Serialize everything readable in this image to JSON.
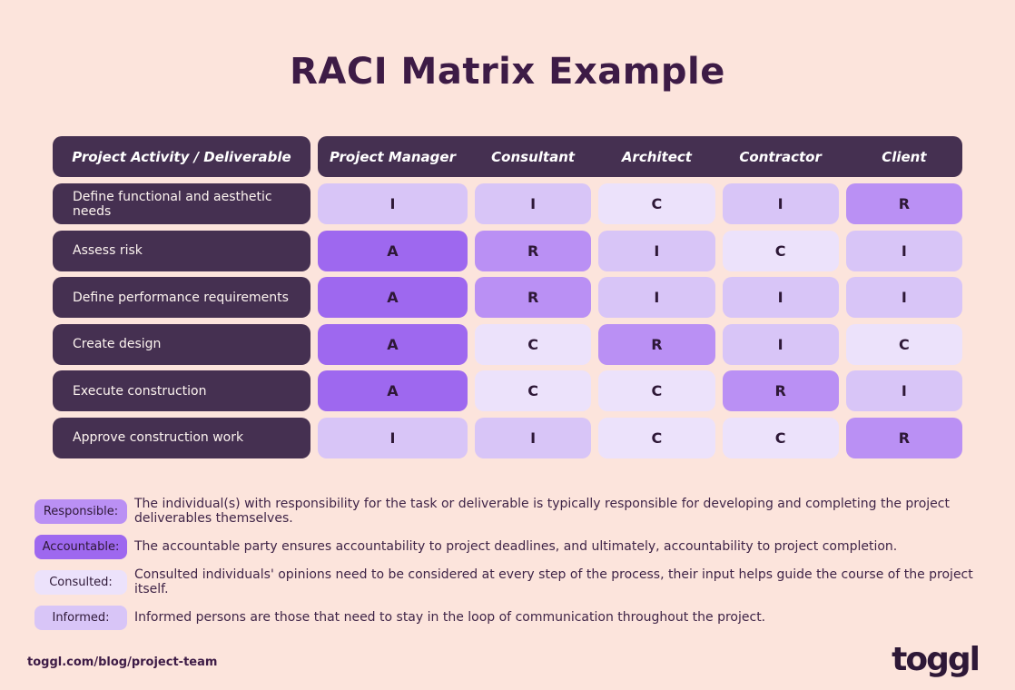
{
  "title": "RACI Matrix Example",
  "chart_data": {
    "type": "table",
    "title": "RACI Matrix Example",
    "columns": [
      "Project Activity / Deliverable",
      "Project Manager",
      "Consultant",
      "Architect",
      "Contractor",
      "Client"
    ],
    "rows": [
      [
        "Define functional and aesthetic needs",
        "I",
        "I",
        "C",
        "I",
        "R"
      ],
      [
        "Assess risk",
        "A",
        "R",
        "I",
        "C",
        "I"
      ],
      [
        "Define performance requirements",
        "A",
        "R",
        "I",
        "I",
        "I"
      ],
      [
        "Create design",
        "A",
        "C",
        "R",
        "I",
        "C"
      ],
      [
        "Execute construction",
        "A",
        "C",
        "C",
        "R",
        "I"
      ],
      [
        "Approve construction work",
        "I",
        "I",
        "C",
        "C",
        "R"
      ]
    ],
    "legend": [
      {
        "label": "Responsible:",
        "key": "R",
        "text": "The individual(s) with responsibility for the task or deliverable is typically responsible for developing and completing the project deliverables themselves."
      },
      {
        "label": "Accountable:",
        "key": "A",
        "text": "The accountable party ensures accountability to project deadlines, and ultimately, accountability to project completion."
      },
      {
        "label": "Consulted:",
        "key": "C",
        "text": "Consulted individuals' opinions need to be considered at every step of the process, their input helps guide the course of the project itself."
      },
      {
        "label": "Informed:",
        "key": "I",
        "text": "Informed persons are those that need to stay in the loop of communication throughout the project."
      }
    ]
  },
  "footer": {
    "url": "toggl.com/blog/project-team",
    "brand": "toggl"
  },
  "colors": {
    "background": "#fce4dc",
    "panel_dark": "#453051",
    "title": "#3d1b46",
    "cell_text": "#2e1837",
    "text": "#3f2447",
    "R": "#ba90f4",
    "A": "#9e68ef",
    "C": "#ece2fb",
    "I": "#d8c5f7"
  }
}
